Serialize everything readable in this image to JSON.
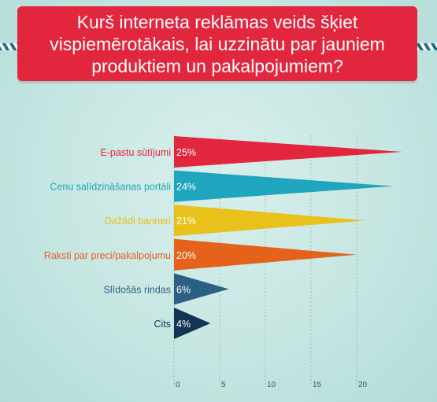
{
  "title": "Kurš interneta reklāmas veids šķiet vispiemērotākais, lai uzzinātu par jauniem produktiem un pakalpojumiem?",
  "chart_data": {
    "type": "bar",
    "orientation": "horizontal",
    "title": "Kurš interneta reklāmas veids šķiet vispiemērotākais, lai uzzinātu par jauniem produktiem un pakalpojumiem?",
    "categories": [
      "E-pastu sūtījumi",
      "Cenu salīdzināšanas portāli",
      "Dažādi banneri",
      "Raksti par preci/pakalpojumu",
      "Slīdošās rindas",
      "Cits"
    ],
    "values": [
      25,
      24,
      21,
      20,
      6,
      4
    ],
    "value_labels": [
      "25%",
      "24%",
      "21%",
      "20%",
      "6%",
      "4%"
    ],
    "colors": [
      "#e1263d",
      "#1fa5bd",
      "#e8c21a",
      "#e5621a",
      "#2b5f84",
      "#143453"
    ],
    "x_ticks": [
      0,
      5,
      10,
      15,
      20
    ],
    "x_tick_labels": [
      "0",
      "5",
      "10",
      "15",
      "20"
    ],
    "xlim": [
      0,
      25
    ],
    "grid": true,
    "legend": "none"
  }
}
